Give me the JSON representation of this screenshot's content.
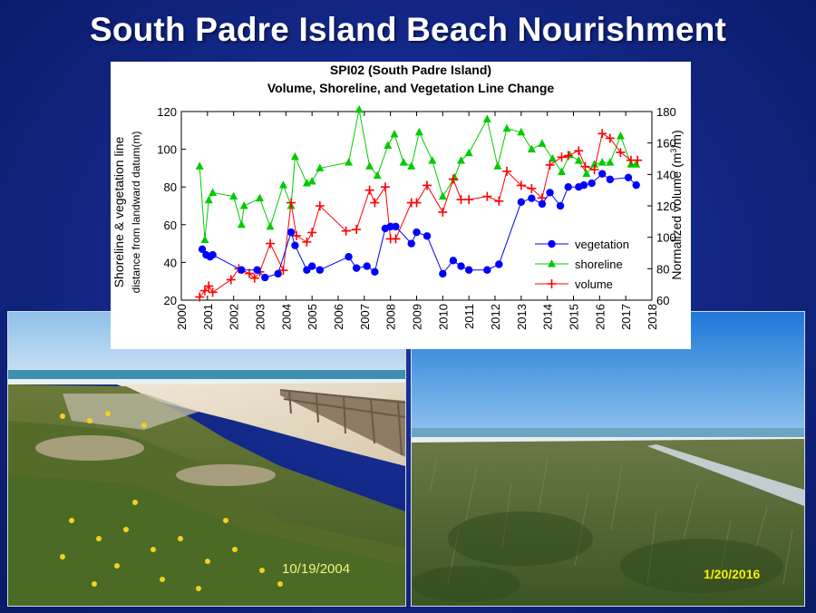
{
  "slide": {
    "title": "South Padre Island Beach Nourishment"
  },
  "photos": {
    "left": {
      "date": "10/19/2004",
      "date_color": "#f2f57a"
    },
    "right": {
      "date": "1/20/2016",
      "date_color": "#f5f000"
    }
  },
  "chart_data": {
    "type": "line",
    "title": "SPI02 (South Padre Island)",
    "subtitle": "Volume, Shoreline, and Vegetation Line Change",
    "xlabel": "",
    "ylabel_left": "Shoreline & vegetation line",
    "ylabel_left_sub": "distance from landward datum(m)",
    "ylabel_right_prefix": "Normalized volume (m",
    "ylabel_right_sup": "3",
    "ylabel_right_suffix": "/m)",
    "xlim": [
      2000,
      2018
    ],
    "ylim_left": [
      20,
      120
    ],
    "ylim_right": [
      60,
      180
    ],
    "x_ticks": [
      "2000",
      "2001",
      "2002",
      "2003",
      "2004",
      "2005",
      "2006",
      "2007",
      "2008",
      "2009",
      "2010",
      "2011",
      "2012",
      "2013",
      "2014",
      "2015",
      "2016",
      "2017",
      "2018"
    ],
    "y_left_ticks": [
      "20",
      "40",
      "60",
      "80",
      "100",
      "120"
    ],
    "y_right_ticks": [
      "60",
      "80",
      "100",
      "120",
      "140",
      "160",
      "180"
    ],
    "legend_position": "center-right",
    "series": [
      {
        "name": "vegetation",
        "axis": "left",
        "color": "#0000ff",
        "marker": "circle",
        "points": [
          [
            2000.8,
            47
          ],
          [
            2000.95,
            44
          ],
          [
            2001.1,
            43
          ],
          [
            2001.2,
            44
          ],
          [
            2002.3,
            36
          ],
          [
            2002.9,
            36
          ],
          [
            2003.2,
            32
          ],
          [
            2003.7,
            34
          ],
          [
            2004.2,
            56
          ],
          [
            2004.35,
            49
          ],
          [
            2004.8,
            36
          ],
          [
            2005.0,
            38
          ],
          [
            2005.3,
            36
          ],
          [
            2006.4,
            43
          ],
          [
            2006.7,
            37
          ],
          [
            2007.1,
            38
          ],
          [
            2007.4,
            35
          ],
          [
            2007.8,
            58
          ],
          [
            2008.0,
            59
          ],
          [
            2008.2,
            59
          ],
          [
            2008.8,
            50
          ],
          [
            2009.0,
            56
          ],
          [
            2009.4,
            54
          ],
          [
            2010.0,
            34
          ],
          [
            2010.4,
            41
          ],
          [
            2010.7,
            38
          ],
          [
            2011.0,
            36
          ],
          [
            2011.7,
            36
          ],
          [
            2012.15,
            39
          ],
          [
            2013.0,
            72
          ],
          [
            2013.4,
            74
          ],
          [
            2013.8,
            71
          ],
          [
            2014.1,
            77
          ],
          [
            2014.5,
            70
          ],
          [
            2014.8,
            80
          ],
          [
            2015.2,
            80
          ],
          [
            2015.4,
            81
          ],
          [
            2015.7,
            82
          ],
          [
            2016.1,
            87
          ],
          [
            2016.4,
            84
          ],
          [
            2017.1,
            85
          ],
          [
            2017.4,
            81
          ]
        ]
      },
      {
        "name": "shoreline",
        "axis": "left",
        "color": "#00cc00",
        "marker": "triangle",
        "points": [
          [
            2000.7,
            91
          ],
          [
            2000.9,
            52
          ],
          [
            2001.05,
            73
          ],
          [
            2001.2,
            77
          ],
          [
            2002.0,
            75
          ],
          [
            2002.3,
            60
          ],
          [
            2002.4,
            70
          ],
          [
            2003.0,
            74
          ],
          [
            2003.4,
            59
          ],
          [
            2003.9,
            81
          ],
          [
            2004.2,
            70
          ],
          [
            2004.35,
            96
          ],
          [
            2004.8,
            82
          ],
          [
            2005.0,
            83
          ],
          [
            2005.3,
            90
          ],
          [
            2006.4,
            93
          ],
          [
            2006.8,
            121
          ],
          [
            2007.2,
            91
          ],
          [
            2007.5,
            86
          ],
          [
            2007.9,
            102
          ],
          [
            2008.15,
            108
          ],
          [
            2008.5,
            93
          ],
          [
            2008.8,
            91
          ],
          [
            2009.1,
            109
          ],
          [
            2009.6,
            94
          ],
          [
            2010.0,
            75
          ],
          [
            2010.45,
            85
          ],
          [
            2010.7,
            94
          ],
          [
            2011.0,
            98
          ],
          [
            2011.7,
            116
          ],
          [
            2012.1,
            91
          ],
          [
            2012.45,
            111
          ],
          [
            2013.0,
            109
          ],
          [
            2013.4,
            100
          ],
          [
            2013.8,
            103
          ],
          [
            2014.2,
            95
          ],
          [
            2014.55,
            88
          ],
          [
            2014.85,
            97
          ],
          [
            2015.2,
            94
          ],
          [
            2015.5,
            87
          ],
          [
            2015.8,
            92
          ],
          [
            2016.1,
            93
          ],
          [
            2016.4,
            93
          ],
          [
            2016.8,
            107
          ],
          [
            2017.2,
            92
          ],
          [
            2017.4,
            92
          ]
        ]
      },
      {
        "name": "volume",
        "axis": "right",
        "color": "#ff0000",
        "marker": "plus",
        "points": [
          [
            2000.7,
            62
          ],
          [
            2000.9,
            66
          ],
          [
            2001.05,
            69
          ],
          [
            2001.2,
            65
          ],
          [
            2001.9,
            73
          ],
          [
            2002.2,
            80
          ],
          [
            2002.6,
            77
          ],
          [
            2002.8,
            74
          ],
          [
            2003.0,
            78
          ],
          [
            2003.4,
            96
          ],
          [
            2003.9,
            79
          ],
          [
            2004.2,
            122
          ],
          [
            2004.4,
            101
          ],
          [
            2004.8,
            97
          ],
          [
            2005.0,
            103
          ],
          [
            2005.3,
            120
          ],
          [
            2006.3,
            104
          ],
          [
            2006.7,
            105
          ],
          [
            2007.2,
            130
          ],
          [
            2007.4,
            122
          ],
          [
            2007.8,
            132
          ],
          [
            2008.0,
            99
          ],
          [
            2008.2,
            99
          ],
          [
            2008.8,
            122
          ],
          [
            2009.0,
            122
          ],
          [
            2009.4,
            133
          ],
          [
            2010.0,
            116
          ],
          [
            2010.4,
            137
          ],
          [
            2010.7,
            124
          ],
          [
            2011.0,
            124
          ],
          [
            2011.7,
            126
          ],
          [
            2012.15,
            123
          ],
          [
            2012.45,
            142
          ],
          [
            2013.0,
            133
          ],
          [
            2013.4,
            131
          ],
          [
            2013.8,
            125
          ],
          [
            2014.1,
            146
          ],
          [
            2014.55,
            151
          ],
          [
            2014.8,
            152
          ],
          [
            2015.2,
            155
          ],
          [
            2015.45,
            145
          ],
          [
            2015.8,
            143
          ],
          [
            2016.1,
            166
          ],
          [
            2016.4,
            163
          ],
          [
            2016.8,
            154
          ],
          [
            2017.2,
            149
          ],
          [
            2017.45,
            149
          ]
        ]
      }
    ]
  }
}
